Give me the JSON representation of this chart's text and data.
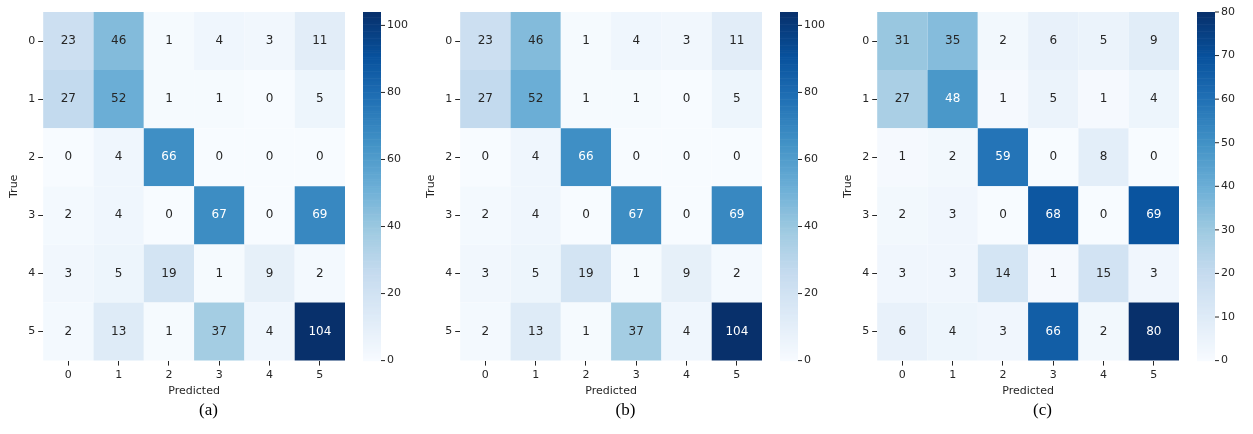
{
  "chart_data": [
    {
      "type": "heatmap",
      "xlabel": "Predicted",
      "ylabel": "True",
      "categories": [
        "0",
        "1",
        "2",
        "3",
        "4",
        "5"
      ],
      "y_categories": [
        "0",
        "1",
        "2",
        "3",
        "4",
        "5"
      ],
      "cells": [
        [
          23,
          46,
          1,
          4,
          3,
          11
        ],
        [
          27,
          52,
          1,
          1,
          0,
          5
        ],
        [
          0,
          4,
          66,
          0,
          0,
          0
        ],
        [
          2,
          4,
          0,
          67,
          0,
          69
        ],
        [
          3,
          5,
          19,
          1,
          9,
          2
        ],
        [
          2,
          13,
          1,
          37,
          4,
          104
        ]
      ],
      "clim": [
        0,
        104
      ],
      "cticks": [
        0,
        20,
        40,
        60,
        80,
        100
      ],
      "data_labels": true,
      "annotations": [
        "(a)"
      ]
    },
    {
      "type": "heatmap",
      "xlabel": "Predicted",
      "ylabel": "True",
      "categories": [
        "0",
        "1",
        "2",
        "3",
        "4",
        "5"
      ],
      "y_categories": [
        "0",
        "1",
        "2",
        "3",
        "4",
        "5"
      ],
      "cells": [
        [
          23,
          46,
          1,
          4,
          3,
          11
        ],
        [
          27,
          52,
          1,
          1,
          0,
          5
        ],
        [
          0,
          4,
          66,
          0,
          0,
          0
        ],
        [
          2,
          4,
          0,
          67,
          0,
          69
        ],
        [
          3,
          5,
          19,
          1,
          9,
          2
        ],
        [
          2,
          13,
          1,
          37,
          4,
          104
        ]
      ],
      "clim": [
        0,
        104
      ],
      "cticks": [
        0,
        20,
        40,
        60,
        80,
        100
      ],
      "data_labels": true,
      "annotations": [
        "(b)"
      ]
    },
    {
      "type": "heatmap",
      "xlabel": "Predicted",
      "ylabel": "True",
      "categories": [
        "0",
        "1",
        "2",
        "3",
        "4",
        "5"
      ],
      "y_categories": [
        "0",
        "1",
        "2",
        "3",
        "4",
        "5"
      ],
      "cells": [
        [
          31,
          35,
          2,
          6,
          5,
          9
        ],
        [
          27,
          48,
          1,
          5,
          1,
          4
        ],
        [
          1,
          2,
          59,
          0,
          8,
          0
        ],
        [
          2,
          3,
          0,
          68,
          0,
          69
        ],
        [
          3,
          3,
          14,
          1,
          15,
          3
        ],
        [
          6,
          4,
          3,
          66,
          2,
          80
        ]
      ],
      "clim": [
        0,
        80
      ],
      "cticks": [
        0,
        10,
        20,
        30,
        40,
        50,
        60,
        70,
        80
      ],
      "data_labels": true,
      "annotations": [
        "(c)"
      ]
    }
  ]
}
